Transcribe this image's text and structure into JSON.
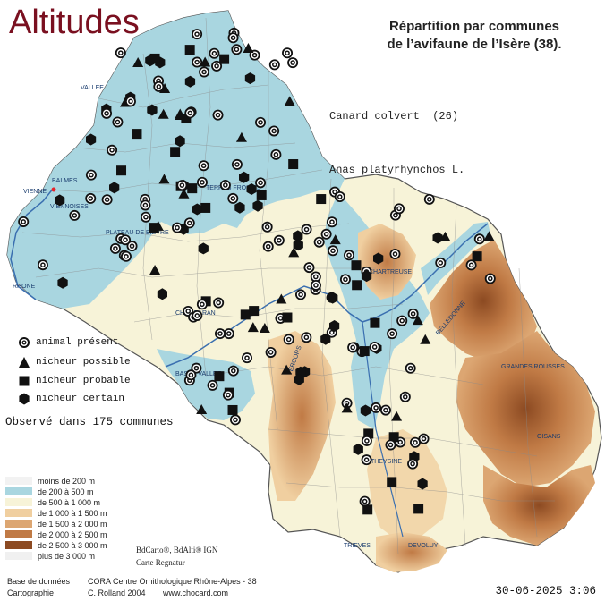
{
  "title": "Altitudes",
  "heading": {
    "line1": "Répartition par communes",
    "line2": "de l’avifaune de l’Isère (38)."
  },
  "species": {
    "common": "Canard colvert  (26)",
    "latin": "Anas platyrhynchos L."
  },
  "legend": [
    {
      "symbol": "animal-present",
      "label": "animal présent"
    },
    {
      "symbol": "triangle",
      "label": "nicheur possible"
    },
    {
      "symbol": "square",
      "label": "nicheur probable"
    },
    {
      "symbol": "hexagon",
      "label": "nicheur certain"
    }
  ],
  "observed": "Observé dans 175 communes",
  "altitude_legend": [
    {
      "label": "moins de 200 m",
      "color": "#f2f2f2"
    },
    {
      "label": "de 200 à 500 m",
      "color": "#a9d6e0"
    },
    {
      "label": "de 500 à 1 000 m",
      "color": "#f7f3d8"
    },
    {
      "label": "de 1 000 à 1 500 m",
      "color": "#f0cfa0"
    },
    {
      "label": "de 1 500 à 2 000 m",
      "color": "#dca672"
    },
    {
      "label": "de 2 000 à 2 500 m",
      "color": "#c07a45"
    },
    {
      "label": "de 2 500 à 3 000 m",
      "color": "#8c4a22"
    },
    {
      "label": "plus de 3 000 m",
      "color": "#f0f0f0"
    }
  ],
  "map_credits": {
    "line1": "BdCarto®, BdAlti® IGN",
    "line2": "Carte Regnatur"
  },
  "footer": {
    "base_label": "Base de données",
    "base_value": "CORA Centre Ornithologique Rhône-Alpes - 38",
    "carto_label": "Cartographie",
    "carto_value": "C. Rolland 2004",
    "website": "www.chocard.com",
    "date": "30-06-2025 3:06"
  },
  "place_labels": [
    "VIENNE",
    "BALMES",
    "VIENNOISES",
    "RHONE",
    "CHARTREUSE",
    "VERCORS",
    "BELLEDONNE",
    "GRANDES ROUSSES",
    "OISANS",
    "TRIEVES",
    "DEVOLUY",
    "MATHEYSINE",
    "CHAMBARAN",
    "BASSE VALLEE",
    "TERRES FROIDES",
    "PLATEAU DE BIEVRE",
    "VALLEE"
  ],
  "colors": {
    "title": "#7a1020",
    "water_vienne": "#e8232a"
  }
}
